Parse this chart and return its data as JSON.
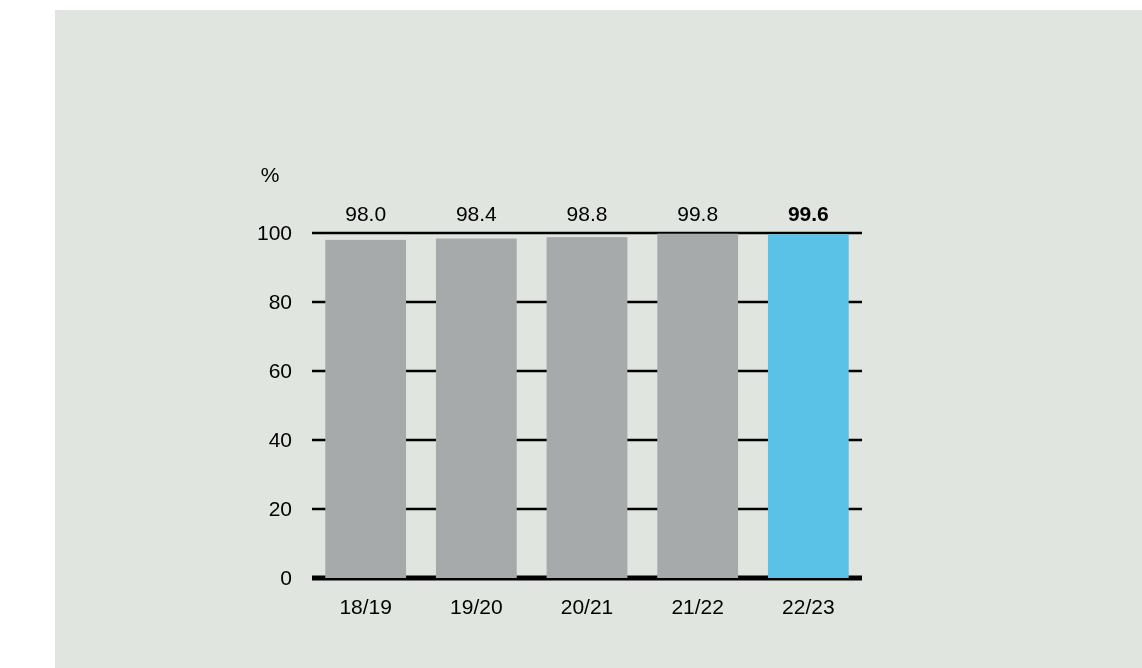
{
  "chart_data": {
    "type": "bar",
    "ylabel": "%",
    "categories": [
      "18/19",
      "19/20",
      "20/21",
      "21/22",
      "22/23"
    ],
    "values": [
      98.0,
      98.4,
      98.8,
      99.8,
      99.6
    ],
    "colors": [
      "#a7aaaa",
      "#a7aaaa",
      "#a7aaaa",
      "#a7aaaa",
      "#5bc2e7"
    ],
    "ylim": [
      0,
      100
    ],
    "yticks": [
      0,
      20,
      40,
      60,
      80,
      100
    ],
    "grid": "y",
    "value_labels": [
      "98.0",
      "98.4",
      "98.8",
      "99.8",
      "99.6"
    ]
  }
}
